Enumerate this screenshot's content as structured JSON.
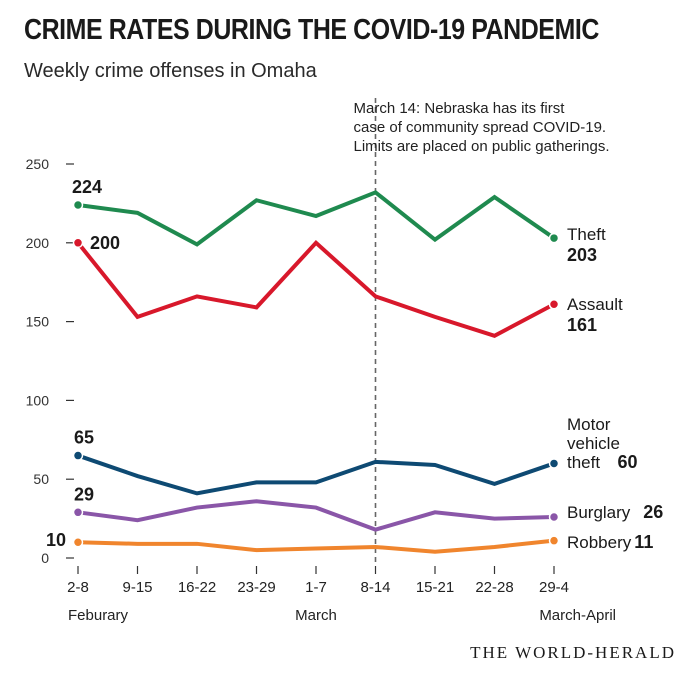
{
  "title": "CRIME RATES DURING THE COVID-19 PANDEMIC",
  "subtitle": "Weekly crime offenses in Omaha",
  "source": "THE WORLD-HERALD",
  "annotation": {
    "lines": [
      "March 14: Nebraska has its first",
      "case of community spread COVID-19.",
      "Limits are placed on public gatherings."
    ],
    "category": "8-14"
  },
  "chart_data": {
    "type": "line",
    "title": "CRIME RATES DURING THE COVID-19 PANDEMIC",
    "subtitle": "Weekly crime offenses in Omaha",
    "xlabel": "",
    "ylabel": "",
    "ylim": [
      0,
      250
    ],
    "yticks": [
      0,
      50,
      100,
      150,
      200,
      250
    ],
    "grid": false,
    "categories": [
      "2-8",
      "9-15",
      "16-22",
      "23-29",
      "1-7",
      "8-14",
      "15-21",
      "22-28",
      "29-4"
    ],
    "month_labels": [
      {
        "label": "Feburary",
        "category": "2-8"
      },
      {
        "label": "March",
        "category": "1-7"
      },
      {
        "label": "March-April",
        "category": "29-4"
      }
    ],
    "series": [
      {
        "name": "Theft",
        "label_lines": [
          "Theft"
        ],
        "color": "#1f8a4f",
        "values": [
          224,
          219,
          199,
          227,
          217,
          232,
          202,
          229,
          203
        ],
        "start_label": "224",
        "end_label": "203"
      },
      {
        "name": "Assault",
        "label_lines": [
          "Assault"
        ],
        "color": "#d8182b",
        "values": [
          200,
          153,
          166,
          159,
          200,
          166,
          153,
          141,
          161
        ],
        "start_label": "200",
        "end_label": "161"
      },
      {
        "name": "Motor vehicle theft",
        "label_lines": [
          "Motor",
          "vehicle",
          "theft"
        ],
        "color": "#0e4a73",
        "values": [
          65,
          52,
          41,
          48,
          48,
          61,
          59,
          47,
          60
        ],
        "start_label": "65",
        "end_label": "60"
      },
      {
        "name": "Burglary",
        "label_lines": [
          "Burglary"
        ],
        "color": "#8a56a8",
        "values": [
          29,
          24,
          32,
          36,
          32,
          18,
          29,
          25,
          26
        ],
        "start_label": "29",
        "end_label": "26"
      },
      {
        "name": "Robbery",
        "label_lines": [
          "Robbery"
        ],
        "color": "#f0852d",
        "values": [
          10,
          9,
          9,
          5,
          6,
          7,
          4,
          7,
          11
        ],
        "start_label": "10",
        "end_label": "11"
      }
    ]
  }
}
